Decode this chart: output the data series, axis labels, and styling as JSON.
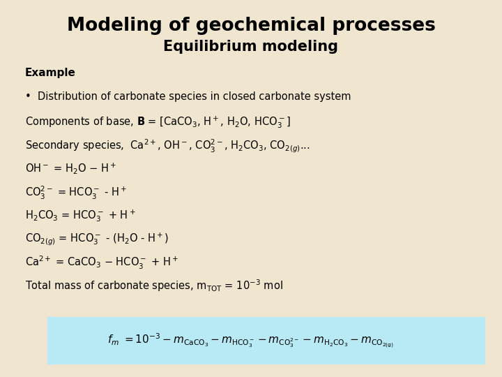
{
  "title1": "Modeling of geochemical processes",
  "title2": "Equilibrium modeling",
  "background_color": "#f0e6d0",
  "formula_box_color": "#b8eaf5",
  "title1_fontsize": 19,
  "title2_fontsize": 15,
  "body_fontsize": 10.5,
  "example_fontsize": 11,
  "formula_fontsize": 11
}
